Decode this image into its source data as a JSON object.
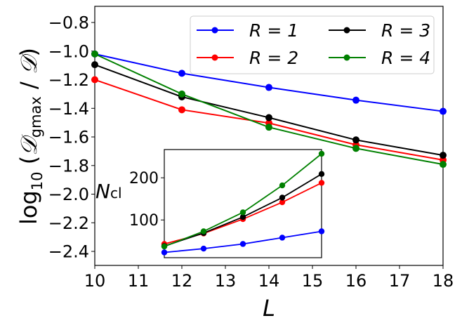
{
  "chart_data": [
    {
      "type": "line",
      "xlabel": "L",
      "ylabel": "log10 (𝒟gmax / 𝒟)",
      "ylabel_parts": {
        "main": "log",
        "sub": "10",
        "open": " (",
        "num": "𝒟",
        "numsub": "gmax",
        "slash": " / ",
        "den": "𝒟",
        "close": ")"
      },
      "xlim": [
        10,
        18
      ],
      "ylim": [
        -2.498,
        -0.687
      ],
      "xticks": [
        10,
        11,
        12,
        13,
        14,
        15,
        16,
        17,
        18
      ],
      "yticks": [
        -2.4,
        -2.2,
        -2.0,
        -1.8,
        -1.6,
        -1.4,
        -1.2,
        -1.0,
        -0.8
      ],
      "xtick_labels": [
        "10",
        "11",
        "12",
        "13",
        "14",
        "15",
        "16",
        "17",
        "18"
      ],
      "ytick_labels": [
        "−2.4",
        "−2.2",
        "−2.0",
        "−1.8",
        "−1.6",
        "−1.4",
        "−1.2",
        "−1.0",
        "−0.8"
      ],
      "grid": false,
      "legend_placement": "top-right",
      "x": [
        10,
        12,
        14,
        16,
        18
      ],
      "series": [
        {
          "name": "R = 1",
          "color": "#0000ff",
          "values": [
            -1.02,
            -1.155,
            -1.254,
            -1.343,
            -1.421
          ]
        },
        {
          "name": "R = 2",
          "color": "#ff0000",
          "values": [
            -1.2,
            -1.41,
            -1.503,
            -1.655,
            -1.761
          ]
        },
        {
          "name": "R = 3",
          "color": "#000000",
          "values": [
            -1.095,
            -1.32,
            -1.465,
            -1.621,
            -1.728
          ]
        },
        {
          "name": "R = 4",
          "color": "#008000",
          "values": [
            -1.02,
            -1.3,
            -1.532,
            -1.68,
            -1.792
          ]
        }
      ]
    },
    {
      "type": "line",
      "inset": true,
      "ylabel": "Ncl",
      "ylabel_parts": {
        "main": "N",
        "sub": "cl"
      },
      "xlim": [
        10,
        18
      ],
      "ylim": [
        10.5,
        267
      ],
      "yticks": [
        100,
        200
      ],
      "ytick_labels": [
        "100",
        "200"
      ],
      "x": [
        10,
        12,
        14,
        16,
        18
      ],
      "series": [
        {
          "color": "#0000ff",
          "values": [
            23,
            32,
            43,
            58,
            73
          ]
        },
        {
          "color": "#ff0000",
          "values": [
            43,
            68,
            102,
            142,
            188
          ]
        },
        {
          "color": "#000000",
          "values": [
            38,
            69,
            107,
            153,
            209
          ]
        },
        {
          "color": "#008000",
          "values": [
            37,
            73,
            118,
            182,
            257
          ]
        }
      ]
    }
  ]
}
